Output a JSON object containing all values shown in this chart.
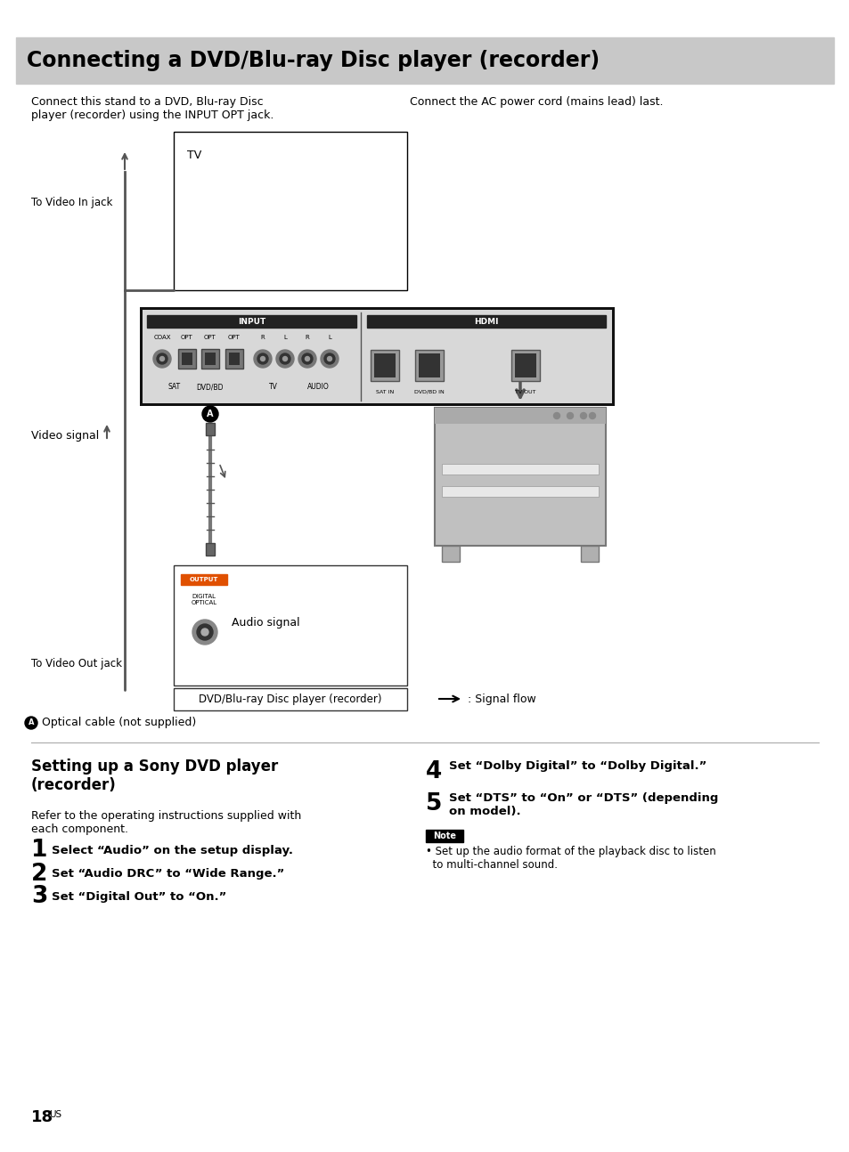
{
  "title": "Connecting a DVD/Blu-ray Disc player (recorder)",
  "title_bg": "#c8c8c8",
  "page_bg": "#ffffff",
  "intro_left": "Connect this stand to a DVD, Blu-ray Disc\nplayer (recorder) using the INPUT OPT jack.",
  "intro_right": "Connect the AC power cord (mains lead) last.",
  "label_tv_in": "To Video In jack",
  "label_video_signal": "Video signal",
  "label_video_out": "To Video Out jack",
  "label_audio_signal": "Audio signal",
  "label_dvd": "DVD/Blu-ray Disc player (recorder)",
  "label_signal_flow": ": Signal flow",
  "label_optical": "Optical cable (not supplied)",
  "section_title": "Setting up a Sony DVD player\n(recorder)",
  "section_intro": "Refer to the operating instructions supplied with\neach component.",
  "steps": [
    {
      "num": "1",
      "text": "Select “Audio” on the setup display."
    },
    {
      "num": "2",
      "text": "Set “Audio DRC” to “Wide Range.”"
    },
    {
      "num": "3",
      "text": "Set “Digital Out” to “On.”"
    },
    {
      "num": "4",
      "text": "Set “Dolby Digital” to “Dolby Digital.”"
    },
    {
      "num": "5",
      "text": "Set “DTS” to “On” or “DTS” (depending\non model)."
    }
  ],
  "note_title": "Note",
  "note_text": "• Set up the audio format of the playback disc to listen\n  to multi-channel sound.",
  "page_num": "18",
  "page_suffix": "US"
}
